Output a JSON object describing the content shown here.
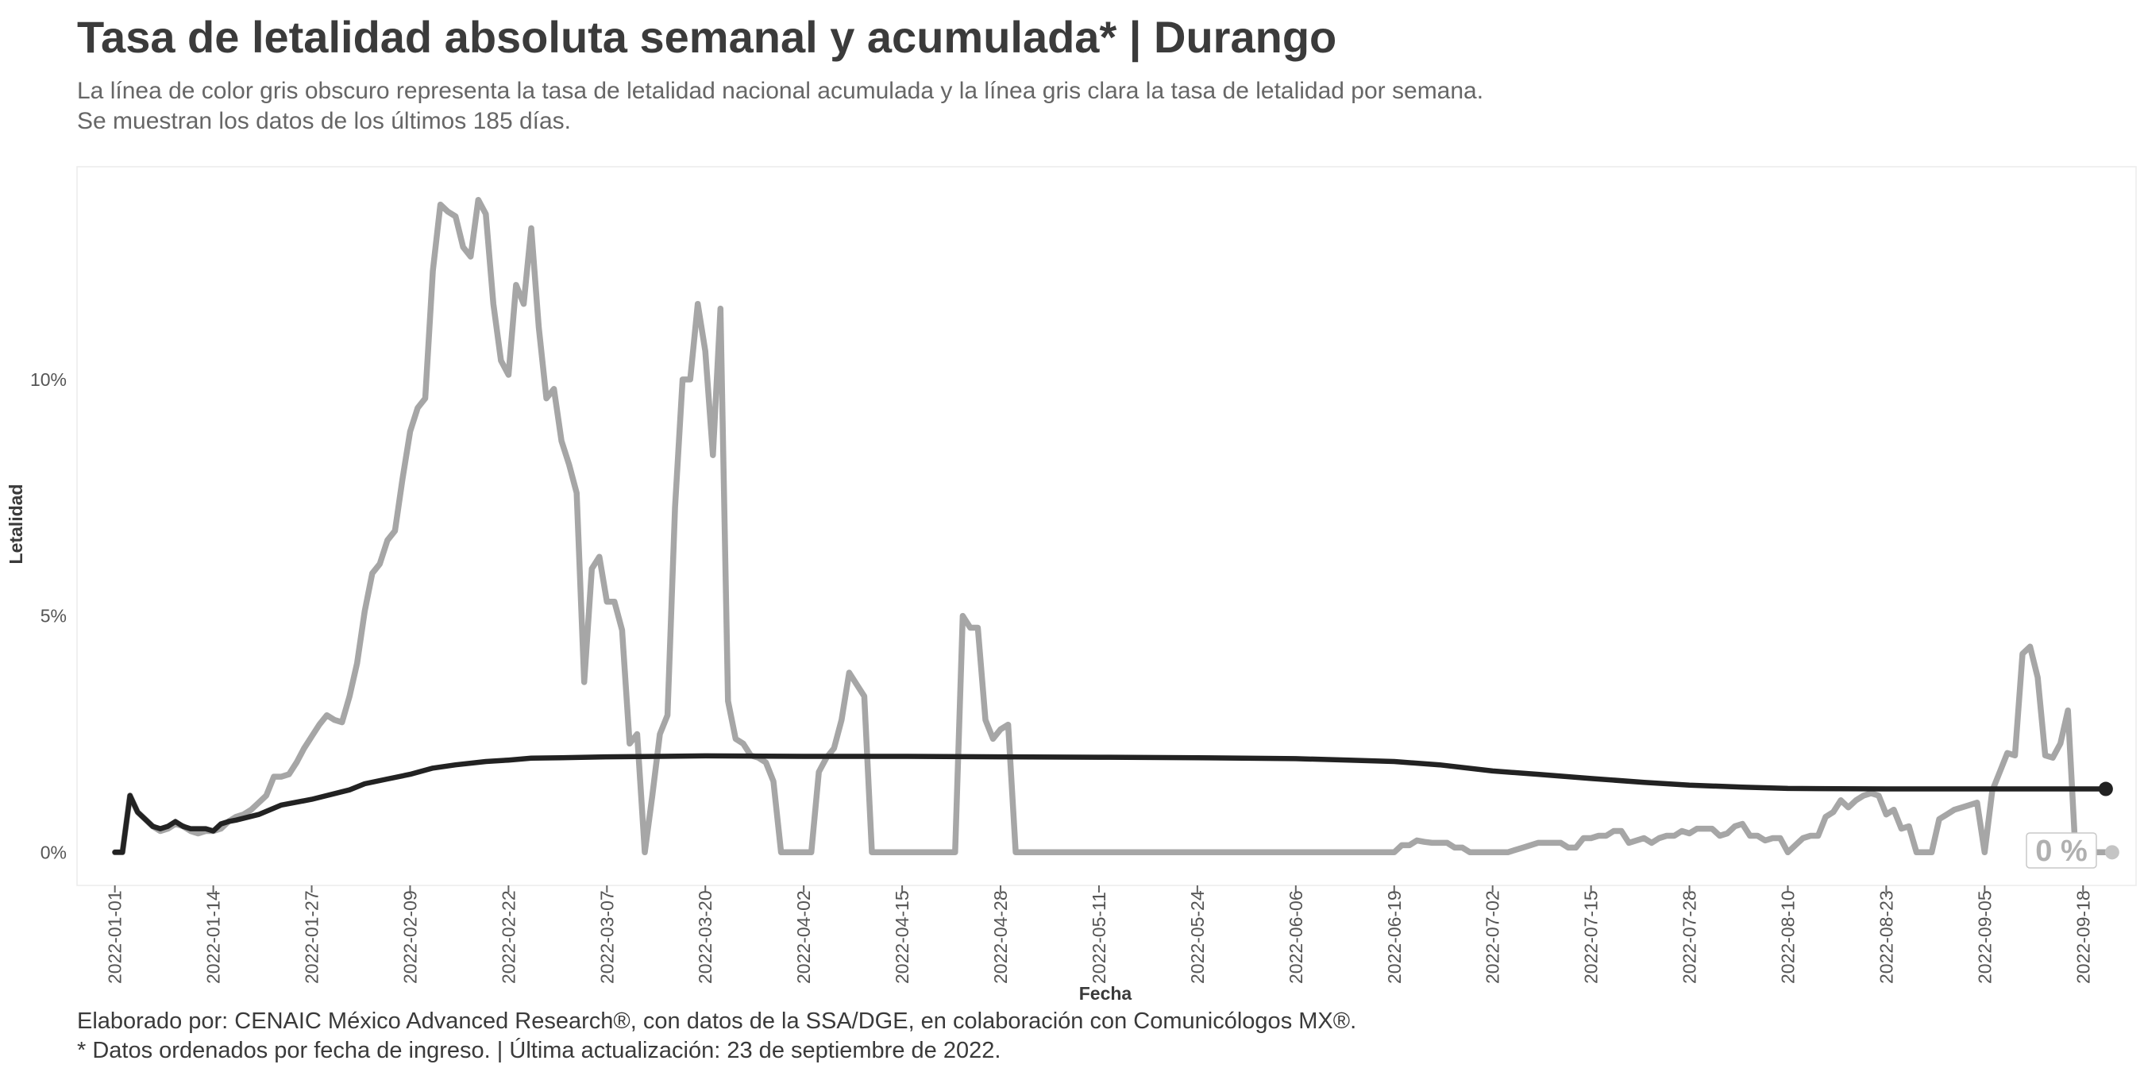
{
  "title": "Tasa de letalidad absoluta semanal y acumulada* | Durango",
  "subtitle": [
    "La línea de color gris obscuro representa la tasa de letalidad nacional acumulada y la línea gris clara la tasa de letalidad por semana.",
    "Se muestran los datos de los últimos 185 días."
  ],
  "caption": [
    "Elaborado por: CENAIC México Advanced Research®, con datos de la SSA/DGE, en colaboración con Comunicólogos MX®.",
    "* Datos ordenados por fecha de ingreso. | Última actualización: 23 de septiembre de 2022."
  ],
  "colors": {
    "weekly": "#a6a6a6",
    "cumulative": "#222222",
    "axis_text": "#555555",
    "grid": "#e8e8e8"
  },
  "end_label": "0 %",
  "chart_data": {
    "type": "line",
    "xlabel": "Fecha",
    "ylabel": "Letalidad",
    "x_start": "2022-01-01",
    "x_end": "2022-09-21",
    "xlim": [
      "2021-12-27",
      "2022-09-25"
    ],
    "ylim": [
      -0.7,
      14.5
    ],
    "x_ticks": [
      "2022-01-01",
      "2022-01-14",
      "2022-01-27",
      "2022-02-09",
      "2022-02-22",
      "2022-03-07",
      "2022-03-20",
      "2022-04-02",
      "2022-04-15",
      "2022-04-28",
      "2022-05-11",
      "2022-05-24",
      "2022-06-06",
      "2022-06-19",
      "2022-07-02",
      "2022-07-15",
      "2022-07-28",
      "2022-08-10",
      "2022-08-23",
      "2022-09-05",
      "2022-09-18"
    ],
    "y_ticks": [
      0,
      5,
      10
    ],
    "y_tick_labels": [
      "0%",
      "5%",
      "10%"
    ],
    "grid": false,
    "series": [
      {
        "key": "weekly",
        "points": [
          [
            "2022-01-01",
            0
          ],
          [
            "2022-01-02",
            0
          ],
          [
            "2022-01-03",
            1.2
          ],
          [
            "2022-01-04",
            0.85
          ],
          [
            "2022-01-05",
            0.7
          ],
          [
            "2022-01-06",
            0.55
          ],
          [
            "2022-01-07",
            0.45
          ],
          [
            "2022-01-08",
            0.5
          ],
          [
            "2022-01-09",
            0.6
          ],
          [
            "2022-01-10",
            0.55
          ],
          [
            "2022-01-11",
            0.45
          ],
          [
            "2022-01-12",
            0.4
          ],
          [
            "2022-01-13",
            0.45
          ],
          [
            "2022-01-14",
            0.45
          ],
          [
            "2022-01-15",
            0.5
          ],
          [
            "2022-01-16",
            0.65
          ],
          [
            "2022-01-17",
            0.75
          ],
          [
            "2022-01-18",
            0.8
          ],
          [
            "2022-01-19",
            0.9
          ],
          [
            "2022-01-20",
            1.05
          ],
          [
            "2022-01-21",
            1.2
          ],
          [
            "2022-01-22",
            1.6
          ],
          [
            "2022-01-23",
            1.6
          ],
          [
            "2022-01-24",
            1.65
          ],
          [
            "2022-01-25",
            1.9
          ],
          [
            "2022-01-26",
            2.2
          ],
          [
            "2022-01-27",
            2.45
          ],
          [
            "2022-01-28",
            2.7
          ],
          [
            "2022-01-29",
            2.9
          ],
          [
            "2022-01-30",
            2.8
          ],
          [
            "2022-01-31",
            2.75
          ],
          [
            "2022-02-01",
            3.3
          ],
          [
            "2022-02-02",
            4.0
          ],
          [
            "2022-02-03",
            5.1
          ],
          [
            "2022-02-04",
            5.9
          ],
          [
            "2022-02-05",
            6.1
          ],
          [
            "2022-02-06",
            6.6
          ],
          [
            "2022-02-07",
            6.8
          ],
          [
            "2022-02-08",
            7.9
          ],
          [
            "2022-02-09",
            8.9
          ],
          [
            "2022-02-10",
            9.4
          ],
          [
            "2022-02-11",
            9.6
          ],
          [
            "2022-02-12",
            12.3
          ],
          [
            "2022-02-13",
            13.7
          ],
          [
            "2022-02-14",
            13.55
          ],
          [
            "2022-02-15",
            13.45
          ],
          [
            "2022-02-16",
            12.8
          ],
          [
            "2022-02-17",
            12.6
          ],
          [
            "2022-02-18",
            13.8
          ],
          [
            "2022-02-19",
            13.5
          ],
          [
            "2022-02-20",
            11.6
          ],
          [
            "2022-02-21",
            10.4
          ],
          [
            "2022-02-22",
            10.1
          ],
          [
            "2022-02-23",
            12.0
          ],
          [
            "2022-02-24",
            11.6
          ],
          [
            "2022-02-25",
            13.2
          ],
          [
            "2022-02-26",
            11.1
          ],
          [
            "2022-02-27",
            9.6
          ],
          [
            "2022-02-28",
            9.8
          ],
          [
            "2022-03-01",
            8.7
          ],
          [
            "2022-03-02",
            8.2
          ],
          [
            "2022-03-03",
            7.6
          ],
          [
            "2022-03-04",
            3.6
          ],
          [
            "2022-03-05",
            6.0
          ],
          [
            "2022-03-06",
            6.25
          ],
          [
            "2022-03-07",
            5.3
          ],
          [
            "2022-03-08",
            5.3
          ],
          [
            "2022-03-09",
            4.7
          ],
          [
            "2022-03-10",
            2.3
          ],
          [
            "2022-03-11",
            2.5
          ],
          [
            "2022-03-12",
            0
          ],
          [
            "2022-03-13",
            1.2
          ],
          [
            "2022-03-14",
            2.5
          ],
          [
            "2022-03-15",
            2.9
          ],
          [
            "2022-03-16",
            7.3
          ],
          [
            "2022-03-17",
            10.0
          ],
          [
            "2022-03-18",
            10.0
          ],
          [
            "2022-03-19",
            11.6
          ],
          [
            "2022-03-20",
            10.6
          ],
          [
            "2022-03-21",
            8.4
          ],
          [
            "2022-03-22",
            11.5
          ],
          [
            "2022-03-23",
            3.2
          ],
          [
            "2022-03-24",
            2.4
          ],
          [
            "2022-03-25",
            2.3
          ],
          [
            "2022-03-26",
            2.05
          ],
          [
            "2022-03-27",
            2.0
          ],
          [
            "2022-03-28",
            1.9
          ],
          [
            "2022-03-29",
            1.5
          ],
          [
            "2022-03-30",
            0
          ],
          [
            "2022-03-31",
            0
          ],
          [
            "2022-04-01",
            0
          ],
          [
            "2022-04-02",
            0
          ],
          [
            "2022-04-03",
            0
          ],
          [
            "2022-04-04",
            1.7
          ],
          [
            "2022-04-05",
            2.0
          ],
          [
            "2022-04-06",
            2.2
          ],
          [
            "2022-04-07",
            2.8
          ],
          [
            "2022-04-08",
            3.8
          ],
          [
            "2022-04-09",
            3.55
          ],
          [
            "2022-04-10",
            3.3
          ],
          [
            "2022-04-11",
            0
          ],
          [
            "2022-04-22",
            0
          ],
          [
            "2022-04-23",
            5.0
          ],
          [
            "2022-04-24",
            4.75
          ],
          [
            "2022-04-25",
            4.75
          ],
          [
            "2022-04-26",
            2.8
          ],
          [
            "2022-04-27",
            2.4
          ],
          [
            "2022-04-28",
            2.6
          ],
          [
            "2022-04-29",
            2.7
          ],
          [
            "2022-04-30",
            0
          ],
          [
            "2022-06-19",
            0
          ],
          [
            "2022-06-20",
            0.15
          ],
          [
            "2022-06-21",
            0.15
          ],
          [
            "2022-06-22",
            0.25
          ],
          [
            "2022-06-23",
            0.22
          ],
          [
            "2022-06-24",
            0.2
          ],
          [
            "2022-06-25",
            0.2
          ],
          [
            "2022-06-26",
            0.2
          ],
          [
            "2022-06-27",
            0.1
          ],
          [
            "2022-06-28",
            0.1
          ],
          [
            "2022-06-29",
            0
          ],
          [
            "2022-07-04",
            0
          ],
          [
            "2022-07-05",
            0.05
          ],
          [
            "2022-07-06",
            0.1
          ],
          [
            "2022-07-07",
            0.15
          ],
          [
            "2022-07-08",
            0.2
          ],
          [
            "2022-07-09",
            0.2
          ],
          [
            "2022-07-10",
            0.2
          ],
          [
            "2022-07-11",
            0.2
          ],
          [
            "2022-07-12",
            0.1
          ],
          [
            "2022-07-13",
            0.1
          ],
          [
            "2022-07-14",
            0.3
          ],
          [
            "2022-07-15",
            0.3
          ],
          [
            "2022-07-16",
            0.35
          ],
          [
            "2022-07-17",
            0.35
          ],
          [
            "2022-07-18",
            0.45
          ],
          [
            "2022-07-19",
            0.45
          ],
          [
            "2022-07-20",
            0.2
          ],
          [
            "2022-07-21",
            0.25
          ],
          [
            "2022-07-22",
            0.3
          ],
          [
            "2022-07-23",
            0.2
          ],
          [
            "2022-07-24",
            0.3
          ],
          [
            "2022-07-25",
            0.35
          ],
          [
            "2022-07-26",
            0.35
          ],
          [
            "2022-07-27",
            0.45
          ],
          [
            "2022-07-28",
            0.4
          ],
          [
            "2022-07-29",
            0.5
          ],
          [
            "2022-07-30",
            0.5
          ],
          [
            "2022-07-31",
            0.5
          ],
          [
            "2022-08-01",
            0.35
          ],
          [
            "2022-08-02",
            0.4
          ],
          [
            "2022-08-03",
            0.55
          ],
          [
            "2022-08-04",
            0.6
          ],
          [
            "2022-08-05",
            0.35
          ],
          [
            "2022-08-06",
            0.35
          ],
          [
            "2022-08-07",
            0.25
          ],
          [
            "2022-08-08",
            0.3
          ],
          [
            "2022-08-09",
            0.3
          ],
          [
            "2022-08-10",
            0
          ],
          [
            "2022-08-11",
            0.15
          ],
          [
            "2022-08-12",
            0.3
          ],
          [
            "2022-08-13",
            0.35
          ],
          [
            "2022-08-14",
            0.35
          ],
          [
            "2022-08-15",
            0.75
          ],
          [
            "2022-08-16",
            0.85
          ],
          [
            "2022-08-17",
            1.1
          ],
          [
            "2022-08-18",
            0.95
          ],
          [
            "2022-08-19",
            1.1
          ],
          [
            "2022-08-20",
            1.2
          ],
          [
            "2022-08-21",
            1.25
          ],
          [
            "2022-08-22",
            1.2
          ],
          [
            "2022-08-23",
            0.8
          ],
          [
            "2022-08-24",
            0.9
          ],
          [
            "2022-08-25",
            0.5
          ],
          [
            "2022-08-26",
            0.55
          ],
          [
            "2022-08-27",
            0
          ],
          [
            "2022-08-29",
            0
          ],
          [
            "2022-08-30",
            0.7
          ],
          [
            "2022-08-31",
            0.8
          ],
          [
            "2022-09-01",
            0.9
          ],
          [
            "2022-09-02",
            0.95
          ],
          [
            "2022-09-03",
            1.0
          ],
          [
            "2022-09-04",
            1.05
          ],
          [
            "2022-09-05",
            0
          ],
          [
            "2022-09-06",
            1.3
          ],
          [
            "2022-09-07",
            1.7
          ],
          [
            "2022-09-08",
            2.1
          ],
          [
            "2022-09-09",
            2.05
          ],
          [
            "2022-09-10",
            4.2
          ],
          [
            "2022-09-11",
            4.35
          ],
          [
            "2022-09-12",
            3.7
          ],
          [
            "2022-09-13",
            2.05
          ],
          [
            "2022-09-14",
            2.0
          ],
          [
            "2022-09-15",
            2.3
          ],
          [
            "2022-09-16",
            3.0
          ],
          [
            "2022-09-17",
            0
          ],
          [
            "2022-09-21",
            0
          ]
        ]
      },
      {
        "key": "cumulative",
        "points": [
          [
            "2022-01-01",
            0
          ],
          [
            "2022-01-02",
            0
          ],
          [
            "2022-01-03",
            1.2
          ],
          [
            "2022-01-04",
            0.85
          ],
          [
            "2022-01-05",
            0.7
          ],
          [
            "2022-01-06",
            0.55
          ],
          [
            "2022-01-07",
            0.5
          ],
          [
            "2022-01-08",
            0.55
          ],
          [
            "2022-01-09",
            0.65
          ],
          [
            "2022-01-10",
            0.55
          ],
          [
            "2022-01-11",
            0.5
          ],
          [
            "2022-01-12",
            0.5
          ],
          [
            "2022-01-13",
            0.5
          ],
          [
            "2022-01-14",
            0.45
          ],
          [
            "2022-01-15",
            0.6
          ],
          [
            "2022-01-16",
            0.65
          ],
          [
            "2022-01-17",
            0.68
          ],
          [
            "2022-01-20",
            0.8
          ],
          [
            "2022-01-23",
            1.0
          ],
          [
            "2022-01-27",
            1.12
          ],
          [
            "2022-02-01",
            1.32
          ],
          [
            "2022-02-03",
            1.45
          ],
          [
            "2022-02-06",
            1.55
          ],
          [
            "2022-02-09",
            1.65
          ],
          [
            "2022-02-12",
            1.78
          ],
          [
            "2022-02-15",
            1.85
          ],
          [
            "2022-02-19",
            1.92
          ],
          [
            "2022-02-22",
            1.95
          ],
          [
            "2022-02-25",
            1.99
          ],
          [
            "2022-03-01",
            2.0
          ],
          [
            "2022-03-07",
            2.02
          ],
          [
            "2022-03-14",
            2.03
          ],
          [
            "2022-03-20",
            2.04
          ],
          [
            "2022-04-02",
            2.03
          ],
          [
            "2022-04-15",
            2.03
          ],
          [
            "2022-04-28",
            2.02
          ],
          [
            "2022-05-11",
            2.01
          ],
          [
            "2022-05-24",
            2.0
          ],
          [
            "2022-06-06",
            1.98
          ],
          [
            "2022-06-13",
            1.95
          ],
          [
            "2022-06-19",
            1.92
          ],
          [
            "2022-06-25",
            1.85
          ],
          [
            "2022-07-02",
            1.72
          ],
          [
            "2022-07-08",
            1.65
          ],
          [
            "2022-07-15",
            1.56
          ],
          [
            "2022-07-22",
            1.48
          ],
          [
            "2022-07-28",
            1.42
          ],
          [
            "2022-08-04",
            1.38
          ],
          [
            "2022-08-10",
            1.35
          ],
          [
            "2022-08-23",
            1.34
          ],
          [
            "2022-09-05",
            1.34
          ],
          [
            "2022-09-21",
            1.34
          ]
        ]
      }
    ]
  }
}
